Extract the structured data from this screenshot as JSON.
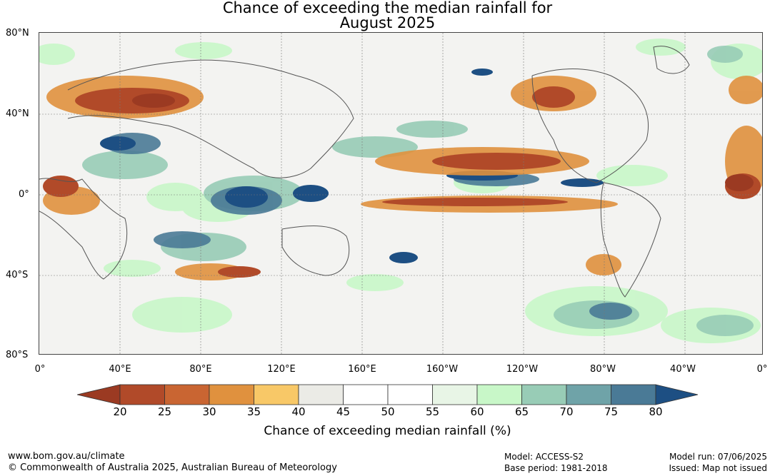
{
  "title_line1": "Chance of exceeding the median rainfall for",
  "title_line2": "August 2025",
  "lat_labels": [
    "80°N",
    "40°N",
    "0°",
    "40°S",
    "80°S"
  ],
  "lon_labels": [
    "0°",
    "40°E",
    "80°E",
    "120°E",
    "160°E",
    "160°W",
    "120°W",
    "80°W",
    "40°W",
    "0°"
  ],
  "colorbar": {
    "ticks": [
      "20",
      "25",
      "30",
      "35",
      "40",
      "45",
      "50",
      "55",
      "60",
      "65",
      "70",
      "75",
      "80"
    ],
    "colors": [
      "#9b3a22",
      "#b14a29",
      "#c96532",
      "#e0913e",
      "#f8c867",
      "#ebebe6",
      "#ffffff",
      "#ffffff",
      "#e8f5e6",
      "#c8f7c8",
      "#98ccb6",
      "#6fa3a8",
      "#4a7a96",
      "#1d4f83"
    ],
    "label": "Chance of exceeding median rainfall (%)"
  },
  "footer": {
    "website": "www.bom.gov.au/climate",
    "copyright": "© Commonwealth of Australia 2025, Australian Bureau of Meteorology",
    "model": "Model: ACCESS-S2",
    "base_period": "Base period: 1981-2018",
    "model_run": "Model run: 07/06/2025",
    "issued": "Issued: Map not issued"
  }
}
